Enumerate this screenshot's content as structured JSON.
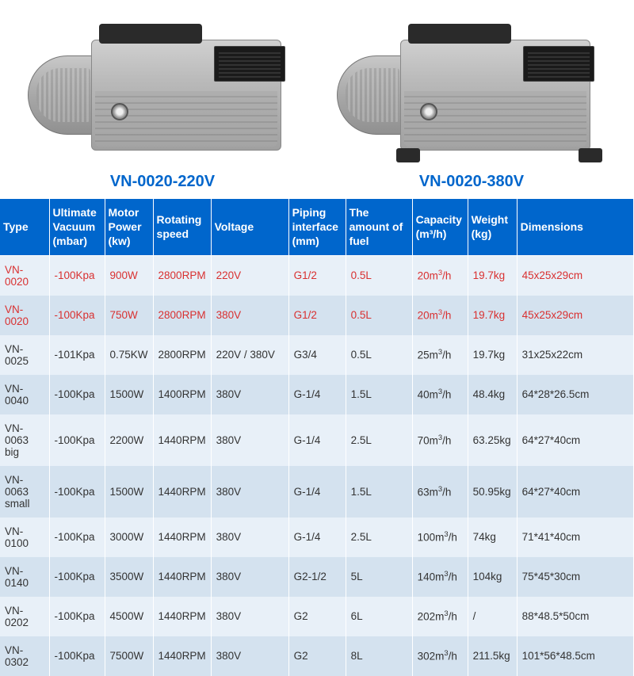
{
  "products": {
    "left_label": "VN-0020-220V",
    "right_label": "VN-0020-380V"
  },
  "table": {
    "header_bg": "#0066cc",
    "header_color": "#ffffff",
    "row_odd_bg": "#e8f0f8",
    "row_even_bg": "#d4e2ef",
    "highlight_color": "#d93030",
    "text_color": "#333333",
    "columns": [
      "Type",
      "Ultimate Vacuum (mbar)",
      "Motor Power (kw)",
      "Rotating speed",
      "Voltage",
      "Piping interface (mm)",
      "The amount of fuel",
      "Capacity (m³/h)",
      "Weight (kg)",
      "Dimensions"
    ],
    "rows": [
      {
        "highlight": true,
        "type": "VN-0020",
        "vacuum": "-100Kpa",
        "power": "900W",
        "speed": "2800RPM",
        "voltage": "220V",
        "piping": "G1/2",
        "fuel": "0.5L",
        "capacity": "20m³/h",
        "weight": "19.7kg",
        "dim": "45x25x29cm"
      },
      {
        "highlight": true,
        "type": "VN-0020",
        "vacuum": "-100Kpa",
        "power": "750W",
        "speed": "2800RPM",
        "voltage": "380V",
        "piping": "G1/2",
        "fuel": "0.5L",
        "capacity": "20m³/h",
        "weight": "19.7kg",
        "dim": "45x25x29cm"
      },
      {
        "highlight": false,
        "type": "VN-0025",
        "vacuum": "-101Kpa",
        "power": "0.75KW",
        "speed": "2800RPM",
        "voltage": "220V / 380V",
        "piping": "G3/4",
        "fuel": "0.5L",
        "capacity": "25m³/h",
        "weight": "19.7kg",
        "dim": "31x25x22cm"
      },
      {
        "highlight": false,
        "type": "VN-0040",
        "vacuum": "-100Kpa",
        "power": "1500W",
        "speed": "1400RPM",
        "voltage": "380V",
        "piping": "G-1/4",
        "fuel": "1.5L",
        "capacity": "40m³/h",
        "weight": "48.4kg",
        "dim": "64*28*26.5cm"
      },
      {
        "highlight": false,
        "type": "VN-0063 big",
        "vacuum": "-100Kpa",
        "power": "2200W",
        "speed": "1440RPM",
        "voltage": "380V",
        "piping": "G-1/4",
        "fuel": "2.5L",
        "capacity": "70m³/h",
        "weight": "63.25kg",
        "dim": "64*27*40cm"
      },
      {
        "highlight": false,
        "type": "VN-0063 small",
        "vacuum": "-100Kpa",
        "power": "1500W",
        "speed": "1440RPM",
        "voltage": "380V",
        "piping": "G-1/4",
        "fuel": "1.5L",
        "capacity": "63m³/h",
        "weight": "50.95kg",
        "dim": "64*27*40cm"
      },
      {
        "highlight": false,
        "type": "VN-0100",
        "vacuum": "-100Kpa",
        "power": "3000W",
        "speed": "1440RPM",
        "voltage": "380V",
        "piping": "G-1/4",
        "fuel": "2.5L",
        "capacity": "100m³/h",
        "weight": "74kg",
        "dim": "71*41*40cm"
      },
      {
        "highlight": false,
        "type": "VN-0140",
        "vacuum": "-100Kpa",
        "power": "3500W",
        "speed": "1440RPM",
        "voltage": "380V",
        "piping": "G2-1/2",
        "fuel": "5L",
        "capacity": "140m³/h",
        "weight": "104kg",
        "dim": "75*45*30cm"
      },
      {
        "highlight": false,
        "type": "VN-0202",
        "vacuum": "-100Kpa",
        "power": "4500W",
        "speed": "1440RPM",
        "voltage": "380V",
        "piping": "G2",
        "fuel": "6L",
        "capacity": "202m³/h",
        "weight": "/",
        "dim": "88*48.5*50cm"
      },
      {
        "highlight": false,
        "type": "VN-0302",
        "vacuum": "-100Kpa",
        "power": "7500W",
        "speed": "1440RPM",
        "voltage": "380V",
        "piping": "G2",
        "fuel": "8L",
        "capacity": "302m³/h",
        "weight": "211.5kg",
        "dim": "101*56*48.5cm"
      }
    ]
  }
}
